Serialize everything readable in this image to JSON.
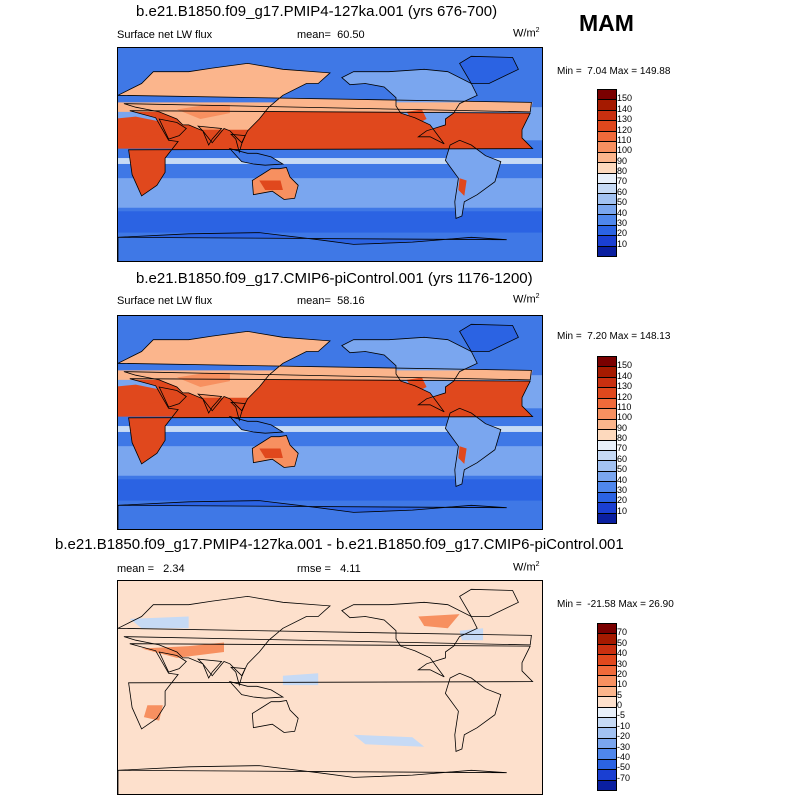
{
  "season": "MAM",
  "panels": [
    {
      "title": "b.e21.B1850.f09_g17.PMIP4-127ka.001 (yrs 676-700)",
      "left_label": "Surface net LW flux",
      "mean_label": "mean=",
      "mean_value": "60.50",
      "units": "W/m",
      "units_sup": "2",
      "min_label": "Min =",
      "min_value": "7.04",
      "max_label": "Max =",
      "max_value": "149.88",
      "colorbar": {
        "ticks": [
          "150",
          "140",
          "130",
          "120",
          "110",
          "100",
          "90",
          "80",
          "70",
          "60",
          "50",
          "40",
          "30",
          "20",
          "10"
        ],
        "colors": [
          "#7a0000",
          "#a51a00",
          "#c93010",
          "#e0481d",
          "#f06a3a",
          "#f79060",
          "#fbb58c",
          "#fdd9bd",
          "#e8f0fa",
          "#c6daf5",
          "#a2c2f2",
          "#7aa6ef",
          "#4f87ec",
          "#2b63e3",
          "#1a3fd2",
          "#0a1fa0"
        ]
      }
    },
    {
      "title": "b.e21.B1850.f09_g17.CMIP6-piControl.001 (yrs 1176-1200)",
      "left_label": "Surface net LW flux",
      "mean_label": "mean=",
      "mean_value": "58.16",
      "units": "W/m",
      "units_sup": "2",
      "min_label": "Min =",
      "min_value": "7.20",
      "max_label": "Max =",
      "max_value": "148.13",
      "colorbar": {
        "ticks": [
          "150",
          "140",
          "130",
          "120",
          "110",
          "100",
          "90",
          "80",
          "70",
          "60",
          "50",
          "40",
          "30",
          "20",
          "10"
        ],
        "colors": [
          "#7a0000",
          "#a51a00",
          "#c93010",
          "#e0481d",
          "#f06a3a",
          "#f79060",
          "#fbb58c",
          "#fdd9bd",
          "#e8f0fa",
          "#c6daf5",
          "#a2c2f2",
          "#7aa6ef",
          "#4f87ec",
          "#2b63e3",
          "#1a3fd2",
          "#0a1fa0"
        ]
      }
    },
    {
      "title": "b.e21.B1850.f09_g17.PMIP4-127ka.001 - b.e21.B1850.f09_g17.CMIP6-piControl.001",
      "left_label": "",
      "mean_label": "mean =",
      "mean_value": "2.34",
      "rmse_label": "rmse =",
      "rmse_value": "4.11",
      "units": "W/m",
      "units_sup": "2",
      "min_label": "Min =",
      "min_value": "-21.58",
      "max_label": "Max =",
      "max_value": "26.90",
      "colorbar": {
        "ticks": [
          "70",
          "50",
          "40",
          "30",
          "20",
          "10",
          "5",
          "0",
          "-5",
          "-10",
          "-20",
          "-30",
          "-40",
          "-50",
          "-70"
        ],
        "colors": [
          "#7a0000",
          "#a51a00",
          "#c93010",
          "#e0481d",
          "#f06a3a",
          "#f79060",
          "#fbb58c",
          "#fde0cc",
          "#e8f0fa",
          "#c6daf5",
          "#a2c2f2",
          "#7aa6ef",
          "#4f87ec",
          "#2b63e3",
          "#1a3fd2",
          "#0a1fa0"
        ]
      }
    }
  ],
  "map_colors": {
    "ocean_flux": "#3f78e6",
    "ocean_flux_light": "#7aa6ef",
    "ocean_flux_pale": "#c6daf5",
    "southern_ocean": "#2b63e3",
    "desert_hot": "#e0481d",
    "desert_warm": "#f79060",
    "land_mid": "#fbb58c",
    "diff_bg": "#fde0cc",
    "diff_neg": "#c6daf5",
    "diff_pos": "#f79060",
    "coast": "#000000"
  }
}
